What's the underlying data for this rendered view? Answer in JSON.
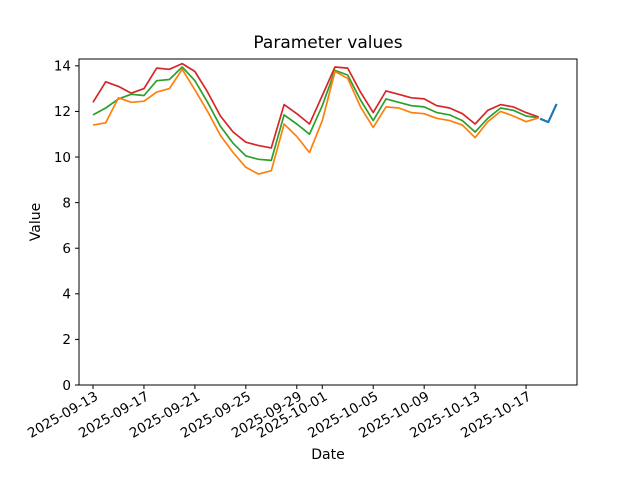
{
  "figure": {
    "title": "Parameter values",
    "xlabel": "Date",
    "ylabel": "Value"
  },
  "chart_data": {
    "type": "line",
    "title": "Parameter values",
    "xlabel": "Date",
    "ylabel": "Value",
    "grid": false,
    "legend": "none",
    "ylim": [
      0,
      14.3
    ],
    "xlim_days": [
      -1.1,
      38.0
    ],
    "y_ticks": [
      0,
      2,
      4,
      6,
      8,
      10,
      12,
      14
    ],
    "x_ticks": [
      {
        "label": "2025-09-13",
        "day": 0
      },
      {
        "label": "2025-09-17",
        "day": 4
      },
      {
        "label": "2025-09-21",
        "day": 8
      },
      {
        "label": "2025-09-25",
        "day": 12
      },
      {
        "label": "2025-09-29",
        "day": 16
      },
      {
        "label": "2025-10-01",
        "day": 18
      },
      {
        "label": "2025-10-05",
        "day": 22
      },
      {
        "label": "2025-10-09",
        "day": 26
      },
      {
        "label": "2025-10-13",
        "day": 30
      },
      {
        "label": "2025-10-17",
        "day": 34
      }
    ],
    "dates": [
      "2025-09-13",
      "2025-09-14",
      "2025-09-15",
      "2025-09-16",
      "2025-09-17",
      "2025-09-18",
      "2025-09-19",
      "2025-09-20",
      "2025-09-21",
      "2025-09-22",
      "2025-09-23",
      "2025-09-24",
      "2025-09-25",
      "2025-09-26",
      "2025-09-27",
      "2025-09-28",
      "2025-09-29",
      "2025-09-30",
      "2025-10-01",
      "2025-10-02",
      "2025-10-03",
      "2025-10-04",
      "2025-10-05",
      "2025-10-06",
      "2025-10-07",
      "2025-10-08",
      "2025-10-09",
      "2025-10-10",
      "2025-10-11",
      "2025-10-12",
      "2025-10-13",
      "2025-10-14",
      "2025-10-15",
      "2025-10-16",
      "2025-10-17",
      "2025-10-18"
    ],
    "series": [
      {
        "name": "red-series",
        "color": "#d62728",
        "line_width": 1.7,
        "values": [
          12.4,
          13.3,
          13.1,
          12.8,
          13.0,
          13.9,
          13.85,
          14.1,
          13.75,
          12.85,
          11.8,
          11.1,
          10.65,
          10.5,
          10.4,
          12.3,
          11.9,
          11.45,
          12.7,
          13.95,
          13.9,
          12.85,
          11.95,
          12.9,
          12.75,
          12.6,
          12.55,
          12.25,
          12.15,
          11.9,
          11.45,
          12.05,
          12.3,
          12.2,
          11.95,
          11.75
        ]
      },
      {
        "name": "green-series",
        "color": "#2ca02c",
        "line_width": 1.7,
        "values": [
          11.85,
          12.15,
          12.55,
          12.75,
          12.7,
          13.35,
          13.4,
          13.95,
          13.35,
          12.4,
          11.35,
          10.6,
          10.05,
          9.9,
          9.85,
          11.85,
          11.45,
          11.0,
          12.25,
          13.8,
          13.6,
          12.5,
          11.6,
          12.55,
          12.4,
          12.25,
          12.2,
          11.95,
          11.85,
          11.6,
          11.1,
          11.7,
          12.15,
          12.05,
          11.8,
          11.72
        ]
      },
      {
        "name": "orange-series",
        "color": "#ff7f0e",
        "line_width": 1.7,
        "values": [
          11.4,
          11.5,
          12.6,
          12.4,
          12.45,
          12.85,
          13.0,
          13.85,
          12.95,
          12.0,
          10.95,
          10.2,
          9.55,
          9.25,
          9.4,
          11.45,
          10.9,
          10.2,
          11.6,
          13.75,
          13.45,
          12.2,
          11.3,
          12.2,
          12.15,
          11.95,
          11.9,
          11.7,
          11.6,
          11.4,
          10.85,
          11.55,
          12.0,
          11.8,
          11.55,
          11.72
        ]
      },
      {
        "name": "blue-forecast-series",
        "color": "#1f77b4",
        "line_width": 2.2,
        "days": [
          35.1,
          35.75,
          36.4
        ],
        "values": [
          11.68,
          11.53,
          12.33
        ]
      }
    ]
  }
}
